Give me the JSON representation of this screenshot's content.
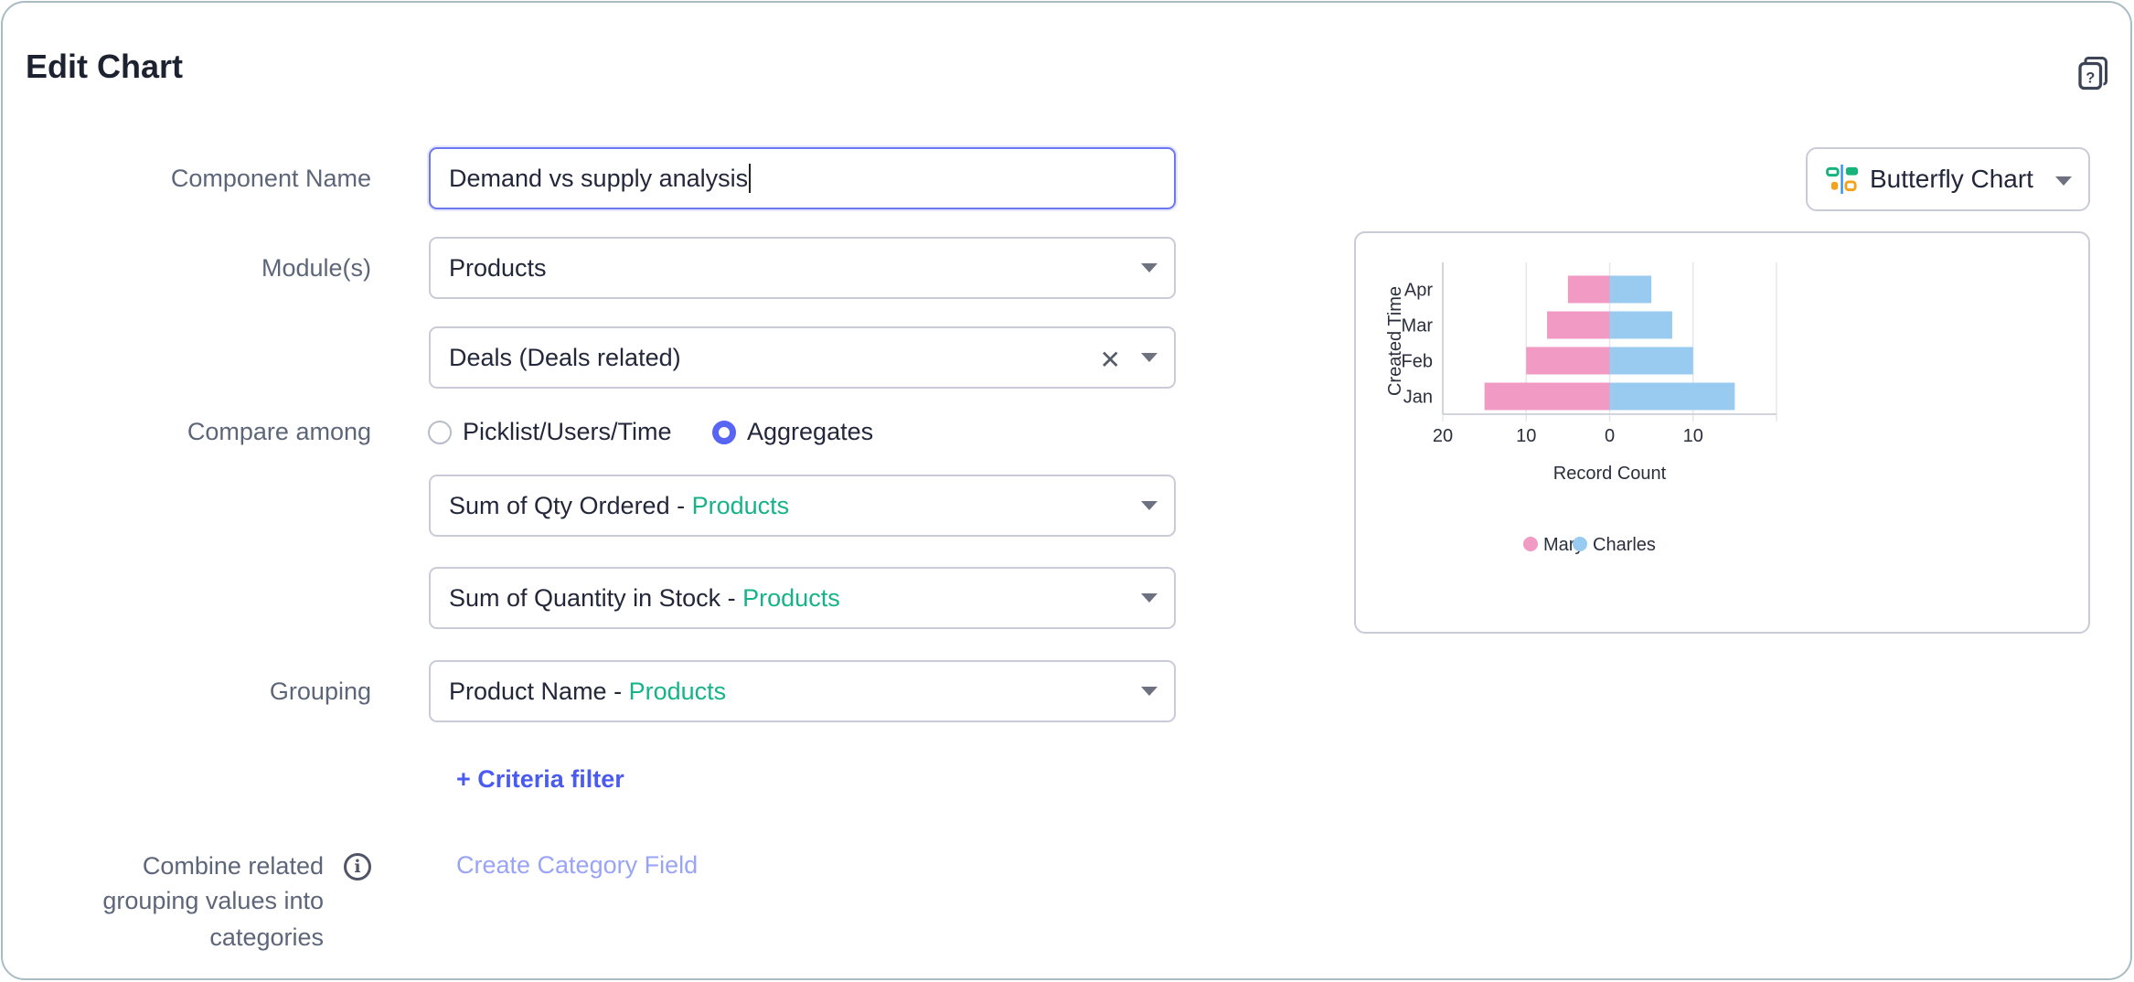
{
  "header": {
    "title": "Edit Chart",
    "help_icon": "help-book-icon"
  },
  "form": {
    "component_name_label": "Component Name",
    "component_name_value": "Demand vs supply analysis",
    "modules_label": "Module(s)",
    "module_primary": "Products",
    "module_secondary": "Deals (Deals related)",
    "compare_label": "Compare among",
    "compare_options": [
      {
        "label": "Picklist/Users/Time",
        "selected": false
      },
      {
        "label": "Aggregates",
        "selected": true
      }
    ],
    "aggregate_1": {
      "field": "Sum of Qty Ordered - ",
      "module": "Products"
    },
    "aggregate_2": {
      "field": "Sum of Quantity in Stock - ",
      "module": "Products"
    },
    "grouping_label": "Grouping",
    "grouping": {
      "field": "Product Name - ",
      "module": "Products"
    },
    "criteria_filter": "+ Criteria filter",
    "combine_label_lines": [
      "Combine related",
      "grouping values into",
      "categories"
    ],
    "create_category": "Create Category Field"
  },
  "chart_type": {
    "label": "Butterfly Chart",
    "icon": "butterfly-chart-icon"
  },
  "colors": {
    "mary": "#f09ac4",
    "charles": "#99cbf0",
    "accent": "#4a5bf0",
    "module": "#16b38a"
  },
  "chart_data": {
    "type": "bar",
    "subtype": "butterfly",
    "categories": [
      "Jan",
      "Feb",
      "Mar",
      "Apr"
    ],
    "series": [
      {
        "name": "Mary",
        "values": [
          15,
          10,
          7.5,
          5
        ]
      },
      {
        "name": "Charles",
        "values": [
          15,
          10,
          7.5,
          5
        ]
      }
    ],
    "xlabel": "Record Count",
    "ylabel": "Created Time",
    "xlim": [
      -20,
      20
    ],
    "x_ticks": [
      {
        "v": -20,
        "t": "20"
      },
      {
        "v": -10,
        "t": "10"
      },
      {
        "v": 0,
        "t": "0"
      },
      {
        "v": 10,
        "t": "10"
      },
      {
        "v": 20,
        "t": ""
      }
    ],
    "grid": true,
    "legend": "bottom"
  }
}
